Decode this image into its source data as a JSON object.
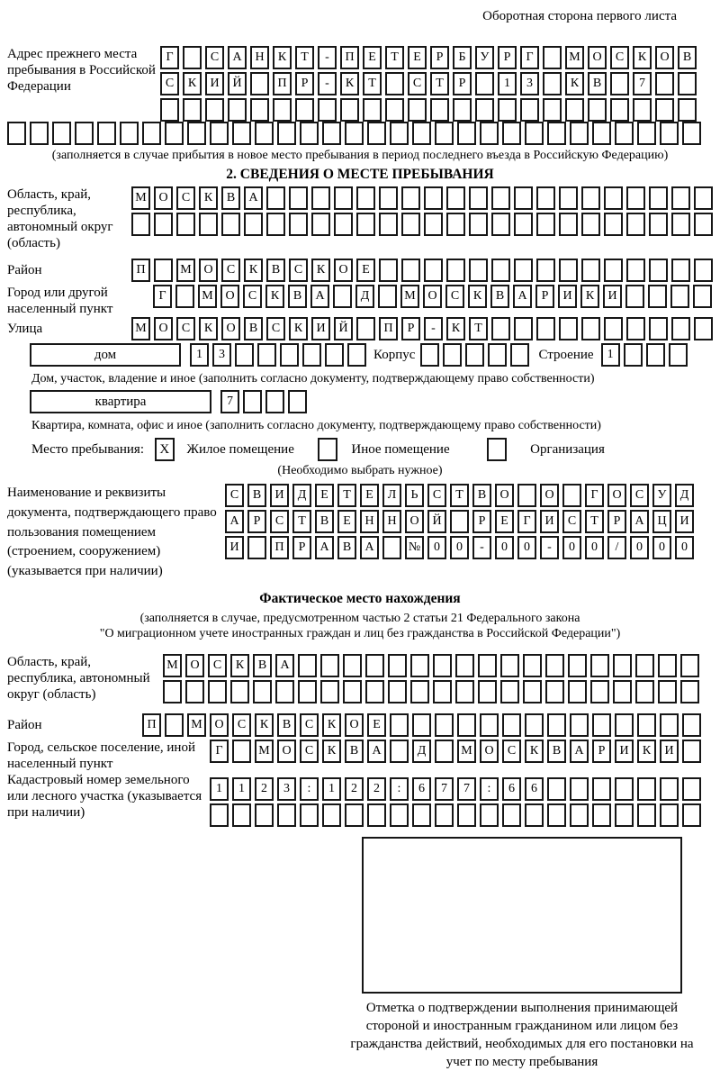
{
  "page": {
    "header_note": "Оборотная сторона первого листа"
  },
  "prev_address": {
    "label": "Адрес прежнего места пребывания в Российской Федерации",
    "rows": [
      {
        "text": "Г САНКТ-ПЕТЕРБУРГ МОСКОВ",
        "count": 24
      },
      {
        "text": "СКИЙ ПР-КТ СТР 13 КВ 7",
        "count": 24
      },
      {
        "text": "",
        "count": 24
      }
    ],
    "full_row": {
      "text": "",
      "count": 31
    },
    "caption": "(заполняется в случае прибытия в новое место пребывания в период последнего въезда в Российскую Федерацию)"
  },
  "section2": {
    "title": "2. СВЕДЕНИЯ О МЕСТЕ ПРЕБЫВАНИЯ",
    "region": {
      "label": "Область, край, республика, автономный округ (область)",
      "rows": [
        {
          "text": "МОСКВА",
          "count": 26
        },
        {
          "text": "",
          "count": 26
        }
      ]
    },
    "district": {
      "label": "Район",
      "row": {
        "text": "П МОСКВСКОЕ",
        "count": 26
      }
    },
    "city": {
      "label": "Город или другой населенный пункт",
      "row": {
        "text": "Г МОСКВА Д МОСКВАРИКИ",
        "count": 25
      }
    },
    "street": {
      "label": "Улица",
      "row": {
        "text": "МОСКОВСКИЙ ПР-КТ",
        "count": 26
      }
    },
    "house": {
      "type_label": "дом",
      "number": {
        "text": "13",
        "count": 8
      },
      "korpus_label": "Корпус",
      "korpus": {
        "text": "",
        "count": 5
      },
      "stroenie_label": "Строение",
      "stroenie": {
        "text": "1",
        "count": 4
      }
    },
    "house_caption": "Дом, участок, владение и иное (заполнить согласно документу, подтверждающему право собственности)",
    "apartment": {
      "type_label": "квартира",
      "number": {
        "text": "7",
        "count": 4
      }
    },
    "apartment_caption": "Квартира, комната, офис и иное (заполнить согласно документу, подтверждающему право собственности)",
    "stay": {
      "label": "Место пребывания:",
      "options": [
        {
          "checked": "X",
          "label": "Жилое помещение"
        },
        {
          "checked": "",
          "label": "Иное помещение"
        },
        {
          "checked": "",
          "label": "Организация"
        }
      ],
      "note": "(Необходимо выбрать нужное)"
    },
    "doc": {
      "label": "Наименование и реквизиты документа, подтверждающего право пользования помещением (строением, сооружением) (указывается при наличии)",
      "rows": [
        {
          "text": "СВИДЕТЕЛЬСТВО О ГОСУД",
          "count": 21
        },
        {
          "text": "АРСТВЕННОЙ РЕГИСТРАЦИ",
          "count": 21
        },
        {
          "text": "И ПРАВА №00-00-00/000",
          "count": 21
        }
      ]
    }
  },
  "actual_location": {
    "title": "Фактическое место нахождения",
    "caption_line1": "(заполняется в случае, предусмотренном частью 2 статьи 21 Федерального закона",
    "caption_line2": "\"О миграционном учете иностранных граждан и лиц без гражданства в Российской Федерации\")",
    "region": {
      "label": "Область, край, республика, автономный округ (область)",
      "rows": [
        {
          "text": "МОСКВА",
          "count": 24
        },
        {
          "text": "",
          "count": 24
        }
      ]
    },
    "district": {
      "label": "Район",
      "row": {
        "text": "П МОСКВСКОЕ",
        "count": 25
      }
    },
    "city": {
      "label": "Город, сельское поселение, иной населенный пункт",
      "row": {
        "text": "Г МОСКВА Д МОСКВАРИКИ",
        "count": 22
      }
    },
    "cadastral": {
      "label": "Кадастровый номер земельного или лесного участка (указывается при наличии)",
      "rows": [
        {
          "text": "1123:122:677:66",
          "count": 22
        },
        {
          "text": "",
          "count": 22
        }
      ]
    }
  },
  "confirmation": {
    "caption": "Отметка о подтверждении выполнения принимающей стороной и иностранным гражданином или лицом без гражданства действий, необходимых для его постановки на учет по месту пребывания"
  }
}
